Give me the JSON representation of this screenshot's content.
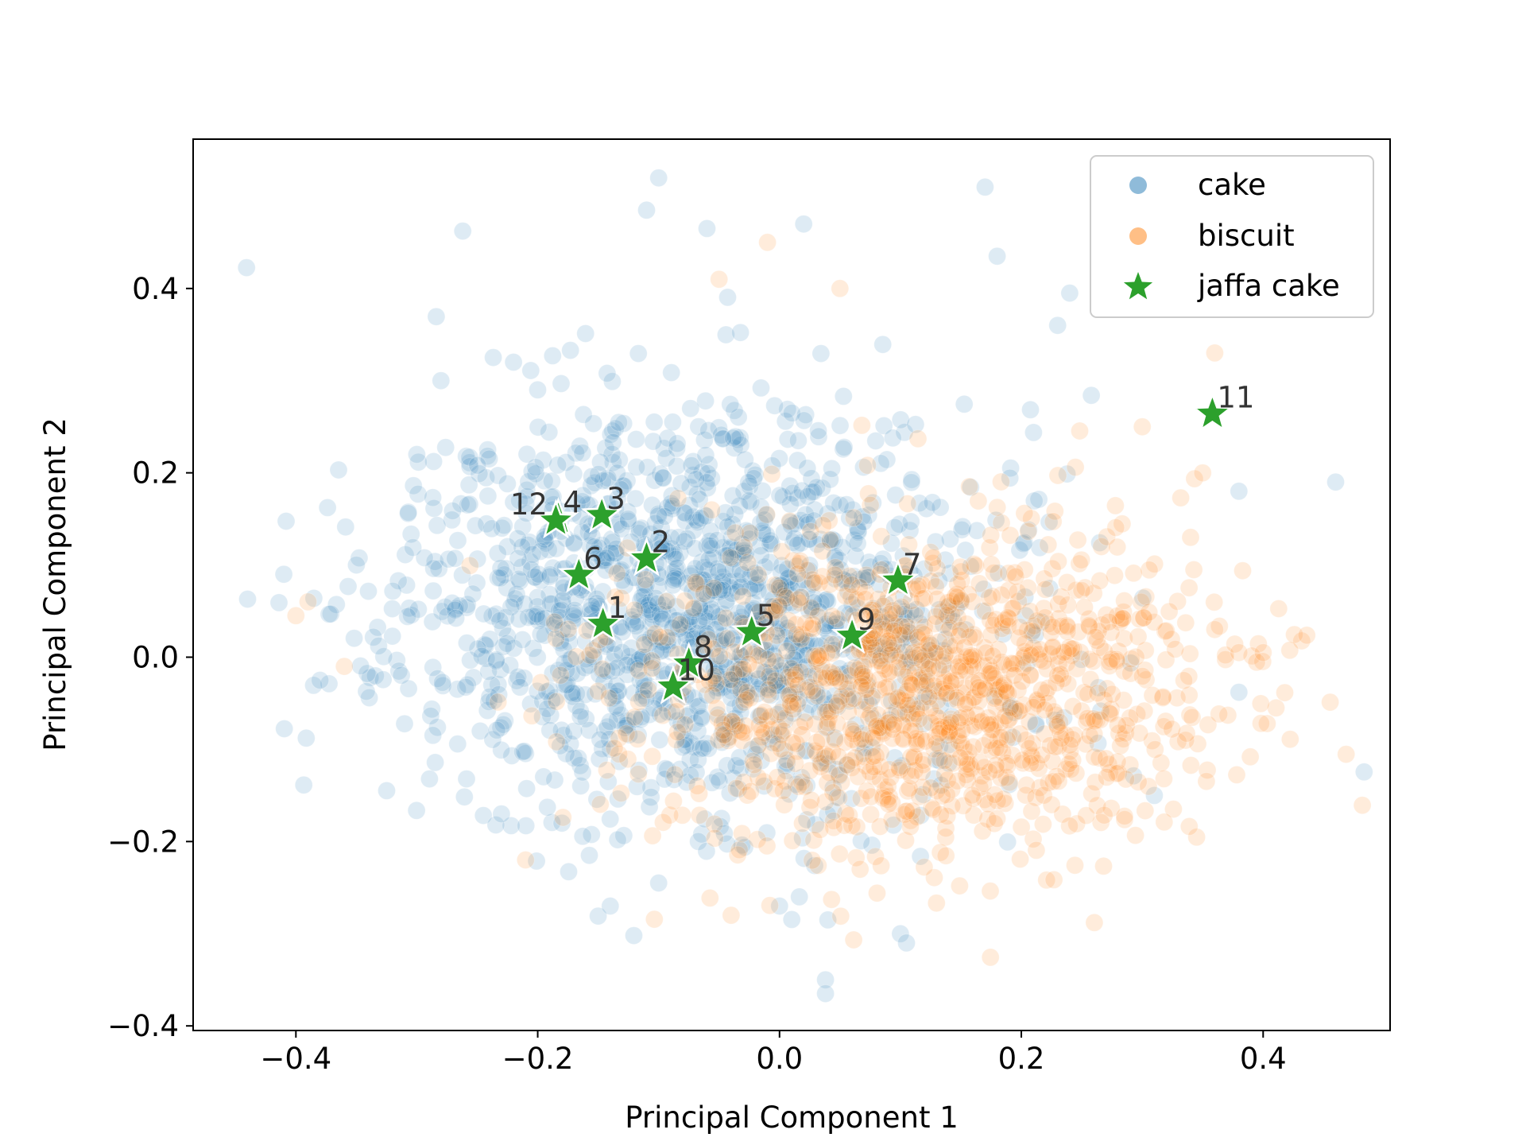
{
  "chart_data": {
    "type": "scatter",
    "title": "",
    "xlabel": "Principal Component 1",
    "ylabel": "Principal Component 2",
    "xlim": [
      -0.485,
      0.505
    ],
    "ylim": [
      -0.405,
      0.562
    ],
    "xticks": [
      -0.4,
      -0.2,
      0.0,
      0.2,
      0.4
    ],
    "xtick_labels": [
      "−0.4",
      "−0.2",
      "0.0",
      "0.2",
      "0.4"
    ],
    "yticks": [
      -0.4,
      -0.2,
      0.0,
      0.2,
      0.4
    ],
    "ytick_labels": [
      "−0.4",
      "−0.2",
      "0.0",
      "0.2",
      "0.4"
    ],
    "grid": false,
    "legend_position": "top-right",
    "series": [
      {
        "name": "cake",
        "color": "#1f77b4",
        "marker": "circle",
        "opacity": 0.15,
        "cloud": {
          "count": 1500,
          "center": [
            -0.07,
            0.05
          ],
          "spread": [
            0.12,
            0.11
          ],
          "seed": 11
        },
        "values": [
          [
            -0.44,
            0.063
          ],
          [
            -0.41,
            0.09
          ],
          [
            -0.38,
            -0.025
          ],
          [
            -0.35,
            0.1
          ],
          [
            -0.3,
            0.22
          ],
          [
            -0.28,
            0.3
          ],
          [
            -0.22,
            0.32
          ],
          [
            -0.2,
            0.29
          ],
          [
            -0.1,
            0.52
          ],
          [
            -0.11,
            0.485
          ],
          [
            -0.06,
            0.465
          ],
          [
            0.02,
            0.47
          ],
          [
            0.17,
            0.51
          ],
          [
            0.18,
            0.435
          ],
          [
            0.24,
            0.395
          ],
          [
            0.23,
            0.36
          ],
          [
            0.46,
            0.19
          ],
          [
            0.38,
            0.18
          ],
          [
            0.38,
            -0.038
          ],
          [
            -0.23,
            -0.17
          ],
          [
            -0.14,
            -0.27
          ],
          [
            -0.1,
            -0.245
          ],
          [
            0.0,
            -0.27
          ],
          [
            0.04,
            -0.285
          ],
          [
            0.1,
            -0.3
          ],
          [
            0.105,
            -0.31
          ],
          [
            0.038,
            -0.35
          ],
          [
            0.038,
            -0.365
          ],
          [
            -0.18,
            -0.18
          ],
          [
            0.31,
            -0.15
          ]
        ]
      },
      {
        "name": "biscuit",
        "color": "#ff7f0e",
        "marker": "circle",
        "opacity": 0.15,
        "cloud": {
          "count": 1200,
          "center": [
            0.12,
            -0.04
          ],
          "spread": [
            0.12,
            0.09
          ],
          "seed": 23
        },
        "values": [
          [
            -0.4,
            0.045
          ],
          [
            -0.39,
            0.06
          ],
          [
            -0.36,
            -0.01
          ],
          [
            -0.05,
            0.41
          ],
          [
            -0.01,
            0.45
          ],
          [
            0.05,
            0.4
          ],
          [
            0.36,
            0.33
          ],
          [
            0.35,
            0.2
          ],
          [
            0.34,
            0.13
          ],
          [
            0.36,
            0.03
          ],
          [
            0.38,
            0.005
          ],
          [
            0.4,
            0.005
          ],
          [
            0.27,
            -0.11
          ],
          [
            0.225,
            -0.16
          ],
          [
            0.18,
            -0.175
          ],
          [
            -0.04,
            -0.28
          ],
          [
            -0.21,
            -0.22
          ],
          [
            0.3,
            0.25
          ]
        ]
      },
      {
        "name": "jaffa cake",
        "color": "#2ca02c",
        "marker": "star",
        "points": [
          {
            "label": "1",
            "x": -0.146,
            "y": 0.036
          },
          {
            "label": "2",
            "x": -0.11,
            "y": 0.107
          },
          {
            "label": "3",
            "x": -0.147,
            "y": 0.154
          },
          {
            "label": "4",
            "x": -0.183,
            "y": 0.15
          },
          {
            "label": "5",
            "x": -0.023,
            "y": 0.027
          },
          {
            "label": "6",
            "x": -0.166,
            "y": 0.089
          },
          {
            "label": "7",
            "x": 0.098,
            "y": 0.083
          },
          {
            "label": "8",
            "x": -0.075,
            "y": -0.007
          },
          {
            "label": "9",
            "x": 0.06,
            "y": 0.023
          },
          {
            "label": "10",
            "x": -0.088,
            "y": -0.032
          },
          {
            "label": "11",
            "x": 0.358,
            "y": 0.264
          },
          {
            "label": "12",
            "x": -0.185,
            "y": 0.148
          }
        ]
      }
    ],
    "legend": [
      {
        "label": "cake"
      },
      {
        "label": "biscuit"
      },
      {
        "label": "jaffa cake"
      }
    ]
  }
}
